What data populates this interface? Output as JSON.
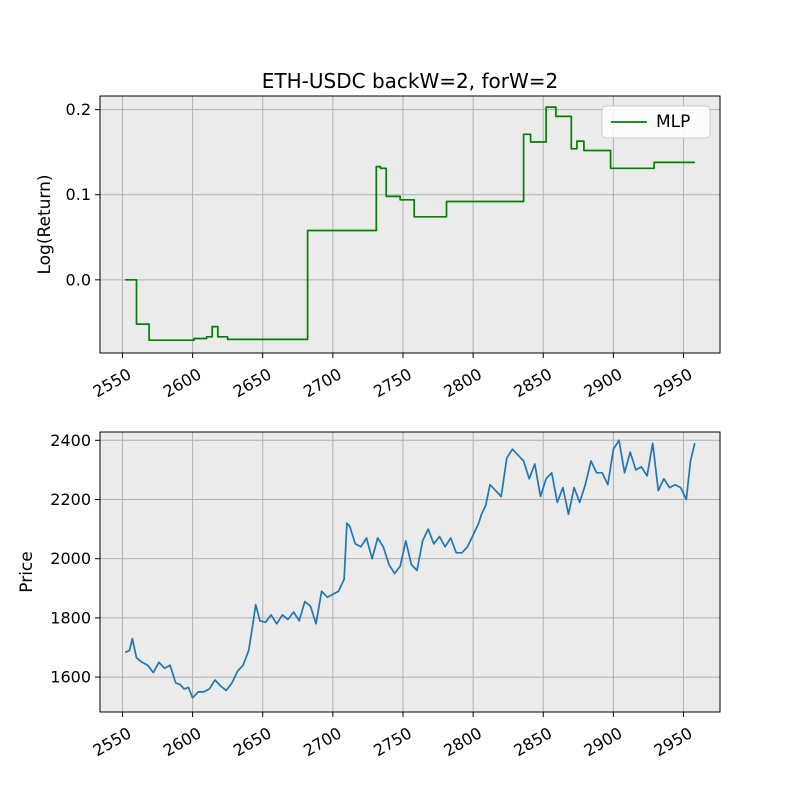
{
  "chart_data": [
    {
      "type": "line",
      "title": "ETH-USDC backW=2, forW=2",
      "xlabel": "",
      "ylabel": "Log(Return)",
      "xlim": [
        2534,
        2976
      ],
      "ylim": [
        -0.086,
        0.216
      ],
      "xticks": [
        "2550",
        "2600",
        "2650",
        "2700",
        "2750",
        "2800",
        "2850",
        "2900",
        "2950"
      ],
      "yticks": [
        "0.0",
        "0.1",
        "0.2"
      ],
      "grid": true,
      "legend": {
        "placement": "top-right",
        "entries": [
          "MLP"
        ]
      },
      "series": [
        {
          "name": "MLP",
          "color": "#008000",
          "step": true,
          "x": [
            2552,
            2560,
            2569,
            2601,
            2610,
            2614,
            2618,
            2625,
            2682,
            2731,
            2734,
            2738,
            2748,
            2758,
            2781,
            2836,
            2841,
            2852,
            2859,
            2870,
            2874,
            2879,
            2898,
            2929,
            2958
          ],
          "y": [
            0.0,
            -0.052,
            -0.071,
            -0.069,
            -0.067,
            -0.055,
            -0.067,
            -0.07,
            0.058,
            0.133,
            0.131,
            0.098,
            0.094,
            0.074,
            0.092,
            0.171,
            0.162,
            0.203,
            0.192,
            0.154,
            0.163,
            0.152,
            0.131,
            0.138,
            0.138
          ]
        }
      ]
    },
    {
      "type": "line",
      "title": "",
      "xlabel": "",
      "ylabel": "Price",
      "xlim": [
        2534,
        2976
      ],
      "ylim": [
        1482,
        2428
      ],
      "xticks": [
        "2550",
        "2600",
        "2650",
        "2700",
        "2750",
        "2800",
        "2850",
        "2900",
        "2950"
      ],
      "yticks": [
        "1600",
        "1800",
        "2000",
        "2200",
        "2400"
      ],
      "grid": true,
      "series": [
        {
          "name": "",
          "color": "#1f77b4",
          "x": [
            2552,
            2555,
            2557,
            2560,
            2564,
            2568,
            2572,
            2576,
            2580,
            2584,
            2588,
            2591,
            2594,
            2597,
            2600,
            2604,
            2608,
            2612,
            2616,
            2620,
            2624,
            2628,
            2632,
            2636,
            2640,
            2643,
            2645,
            2648,
            2652,
            2656,
            2660,
            2664,
            2668,
            2672,
            2676,
            2680,
            2684,
            2688,
            2692,
            2696,
            2700,
            2704,
            2708,
            2710,
            2712,
            2716,
            2720,
            2724,
            2728,
            2732,
            2736,
            2740,
            2744,
            2748,
            2752,
            2756,
            2760,
            2764,
            2768,
            2772,
            2776,
            2780,
            2784,
            2788,
            2792,
            2796,
            2800,
            2804,
            2806,
            2809,
            2812,
            2816,
            2820,
            2824,
            2828,
            2832,
            2836,
            2840,
            2844,
            2848,
            2852,
            2856,
            2860,
            2864,
            2868,
            2872,
            2876,
            2880,
            2884,
            2888,
            2892,
            2896,
            2900,
            2904,
            2908,
            2912,
            2916,
            2920,
            2924,
            2928,
            2932,
            2936,
            2940,
            2944,
            2948,
            2952,
            2955,
            2958
          ],
          "y": [
            1683,
            1690,
            1730,
            1665,
            1650,
            1640,
            1615,
            1650,
            1630,
            1640,
            1580,
            1575,
            1560,
            1565,
            1530,
            1550,
            1550,
            1560,
            1590,
            1570,
            1555,
            1580,
            1620,
            1640,
            1690,
            1780,
            1845,
            1790,
            1785,
            1810,
            1780,
            1810,
            1795,
            1820,
            1790,
            1855,
            1840,
            1780,
            1890,
            1870,
            1880,
            1890,
            1930,
            2120,
            2110,
            2050,
            2040,
            2070,
            2000,
            2070,
            2040,
            1980,
            1950,
            1975,
            2060,
            1980,
            1960,
            2060,
            2100,
            2050,
            2075,
            2040,
            2070,
            2020,
            2020,
            2040,
            2080,
            2120,
            2150,
            2180,
            2250,
            2230,
            2210,
            2340,
            2370,
            2350,
            2330,
            2270,
            2320,
            2210,
            2270,
            2290,
            2190,
            2240,
            2150,
            2240,
            2190,
            2250,
            2330,
            2290,
            2290,
            2250,
            2370,
            2400,
            2290,
            2360,
            2300,
            2310,
            2280,
            2390,
            2230,
            2270,
            2240,
            2250,
            2240,
            2200,
            2330,
            2390
          ]
        }
      ]
    }
  ]
}
